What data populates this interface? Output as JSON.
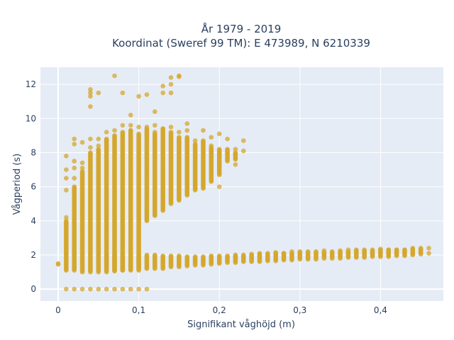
{
  "chart_data": {
    "type": "scatter",
    "title_lines": [
      "År 1979 - 2019",
      "Koordinat (Sweref 99 TM): E 473989, N 6210339"
    ],
    "xlabel": "Signifikant våghöjd (m)",
    "ylabel": "Vågperiod (s)",
    "xlim": [
      -0.022,
      0.478
    ],
    "ylim": [
      -0.7,
      13.0
    ],
    "x_ticks": [
      0,
      0.1,
      0.2,
      0.3,
      0.4
    ],
    "x_tick_labels": [
      "0",
      "0,1",
      "0,2",
      "0,3",
      "0,4"
    ],
    "y_ticks": [
      0,
      2,
      4,
      6,
      8,
      10,
      12
    ],
    "y_tick_labels": [
      "0",
      "2",
      "4",
      "6",
      "8",
      "10",
      "12"
    ],
    "grid": true,
    "marker_color": "#d4a72c",
    "plot_background": "#e5ecf6",
    "series": [
      {
        "points": [
          [
            0,
            1.5
          ],
          [
            0,
            1.45
          ],
          [
            0.01,
            0
          ],
          [
            0.02,
            0
          ],
          [
            0.03,
            0
          ],
          [
            0.04,
            0
          ],
          [
            0.05,
            0
          ],
          [
            0.06,
            0
          ],
          [
            0.07,
            0
          ],
          [
            0.08,
            0
          ],
          [
            0.09,
            0
          ],
          [
            0.1,
            0
          ],
          [
            0.11,
            0
          ],
          [
            0.01,
            7.8
          ],
          [
            0.01,
            7.0
          ],
          [
            0.01,
            6.5
          ],
          [
            0.01,
            5.8
          ],
          [
            0.01,
            4.2
          ],
          [
            0.02,
            8.8
          ],
          [
            0.02,
            8.5
          ],
          [
            0.02,
            7.5
          ],
          [
            0.02,
            7.1
          ],
          [
            0.02,
            6.5
          ],
          [
            0.03,
            8.6
          ],
          [
            0.03,
            7.4
          ],
          [
            0.03,
            7.1
          ],
          [
            0.04,
            11.7
          ],
          [
            0.04,
            11.5
          ],
          [
            0.04,
            11.3
          ],
          [
            0.04,
            10.7
          ],
          [
            0.04,
            8.8
          ],
          [
            0.04,
            8.3
          ],
          [
            0.05,
            11.5
          ],
          [
            0.05,
            8.8
          ],
          [
            0.05,
            8.4
          ],
          [
            0.06,
            9.2
          ],
          [
            0.06,
            8.7
          ],
          [
            0.07,
            12.5
          ],
          [
            0.07,
            9.3
          ],
          [
            0.07,
            3.4
          ],
          [
            0.08,
            11.5
          ],
          [
            0.08,
            9.6
          ],
          [
            0.08,
            3.7
          ],
          [
            0.09,
            10.2
          ],
          [
            0.09,
            9.6
          ],
          [
            0.09,
            9.3
          ],
          [
            0.1,
            11.3
          ],
          [
            0.1,
            9.5
          ],
          [
            0.11,
            11.4
          ],
          [
            0.11,
            9.5
          ],
          [
            0.12,
            10.4
          ],
          [
            0.12,
            9.6
          ],
          [
            0.12,
            9.2
          ],
          [
            0.13,
            11.9
          ],
          [
            0.13,
            11.5
          ],
          [
            0.13,
            9.4
          ],
          [
            0.14,
            12.4
          ],
          [
            0.14,
            12.0
          ],
          [
            0.14,
            11.5
          ],
          [
            0.14,
            9.5
          ],
          [
            0.15,
            12.5
          ],
          [
            0.15,
            12.45
          ],
          [
            0.15,
            9.2
          ],
          [
            0.16,
            9.7
          ],
          [
            0.16,
            9.3
          ],
          [
            0.17,
            8.7
          ],
          [
            0.18,
            9.3
          ],
          [
            0.19,
            8.9
          ],
          [
            0.19,
            8.4
          ],
          [
            0.19,
            7.9
          ],
          [
            0.2,
            9.1
          ],
          [
            0.2,
            6.0
          ],
          [
            0.21,
            8.8
          ],
          [
            0.22,
            8.2
          ],
          [
            0.22,
            7.3
          ],
          [
            0.23,
            8.7
          ],
          [
            0.23,
            8.1
          ],
          [
            0.24,
            2.05
          ],
          [
            0.25,
            2.1
          ],
          [
            0.26,
            2.1
          ],
          [
            0.27,
            2.15
          ],
          [
            0.28,
            2.1
          ],
          [
            0.29,
            2.2
          ],
          [
            0.3,
            2.2
          ],
          [
            0.31,
            2.2
          ],
          [
            0.32,
            2.2
          ],
          [
            0.33,
            2.25
          ],
          [
            0.34,
            2.2
          ],
          [
            0.35,
            2.25
          ],
          [
            0.36,
            2.3
          ],
          [
            0.37,
            2.3
          ],
          [
            0.38,
            2.3
          ],
          [
            0.39,
            2.3
          ],
          [
            0.4,
            2.35
          ],
          [
            0.41,
            2.3
          ],
          [
            0.42,
            2.3
          ],
          [
            0.43,
            2.3
          ],
          [
            0.44,
            2.4
          ],
          [
            0.45,
            2.4
          ],
          [
            0.46,
            2.4
          ],
          [
            0.46,
            2.1
          ]
        ],
        "ranges": [
          [
            0.01,
            1.1,
            4.0
          ],
          [
            0.02,
            1.1,
            6.0
          ],
          [
            0.03,
            1.0,
            6.9
          ],
          [
            0.04,
            1.0,
            8.0
          ],
          [
            0.05,
            1.0,
            8.2
          ],
          [
            0.06,
            1.0,
            8.8
          ],
          [
            0.07,
            1.05,
            9.0
          ],
          [
            0.08,
            1.1,
            9.2
          ],
          [
            0.09,
            1.15,
            9.3
          ],
          [
            0.1,
            1.2,
            9.1
          ],
          [
            0.11,
            4.0,
            9.4
          ],
          [
            0.12,
            4.3,
            9.1
          ],
          [
            0.13,
            4.6,
            9.4
          ],
          [
            0.14,
            5.0,
            9.2
          ],
          [
            0.15,
            5.2,
            8.9
          ],
          [
            0.16,
            5.5,
            8.9
          ],
          [
            0.17,
            5.8,
            8.5
          ],
          [
            0.18,
            5.9,
            8.7
          ],
          [
            0.19,
            6.3,
            8.3
          ],
          [
            0.2,
            6.7,
            8.2
          ],
          [
            0.21,
            7.5,
            8.2
          ],
          [
            0.22,
            7.6,
            8.0
          ],
          [
            0.06,
            1.3,
            2.0
          ],
          [
            0.07,
            1.1,
            2.0
          ],
          [
            0.08,
            1.1,
            2.0
          ],
          [
            0.09,
            1.1,
            2.0
          ],
          [
            0.1,
            1.1,
            2.0
          ],
          [
            0.11,
            1.2,
            2.0
          ],
          [
            0.12,
            1.2,
            2.0
          ],
          [
            0.13,
            1.2,
            1.95
          ],
          [
            0.14,
            1.3,
            1.95
          ],
          [
            0.15,
            1.3,
            1.95
          ],
          [
            0.16,
            1.35,
            1.9
          ],
          [
            0.17,
            1.4,
            1.9
          ],
          [
            0.18,
            1.4,
            1.9
          ],
          [
            0.19,
            1.45,
            1.95
          ],
          [
            0.2,
            1.5,
            1.95
          ],
          [
            0.21,
            1.55,
            1.95
          ],
          [
            0.22,
            1.55,
            2.0
          ],
          [
            0.23,
            1.6,
            2.0
          ],
          [
            0.24,
            1.6,
            2.0
          ],
          [
            0.25,
            1.6,
            2.05
          ],
          [
            0.26,
            1.65,
            2.05
          ],
          [
            0.27,
            1.65,
            2.1
          ],
          [
            0.28,
            1.7,
            2.1
          ],
          [
            0.29,
            1.7,
            2.1
          ],
          [
            0.3,
            1.75,
            2.15
          ],
          [
            0.31,
            1.75,
            2.15
          ],
          [
            0.32,
            1.75,
            2.15
          ],
          [
            0.33,
            1.8,
            2.15
          ],
          [
            0.34,
            1.8,
            2.15
          ],
          [
            0.35,
            1.8,
            2.2
          ],
          [
            0.36,
            1.85,
            2.2
          ],
          [
            0.37,
            1.85,
            2.25
          ],
          [
            0.38,
            1.85,
            2.25
          ],
          [
            0.39,
            1.9,
            2.25
          ],
          [
            0.4,
            1.9,
            2.3
          ],
          [
            0.41,
            1.9,
            2.3
          ],
          [
            0.42,
            1.95,
            2.3
          ],
          [
            0.43,
            1.95,
            2.3
          ],
          [
            0.44,
            2.0,
            2.35
          ],
          [
            0.45,
            2.05,
            2.35
          ]
        ]
      }
    ]
  }
}
